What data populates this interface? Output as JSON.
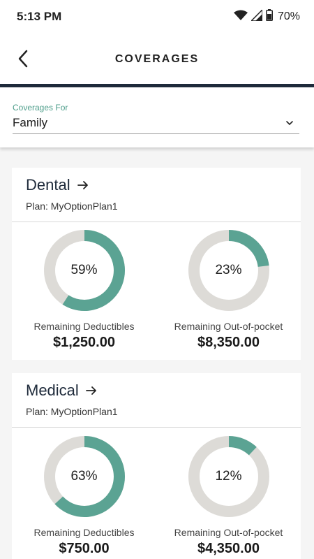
{
  "status_bar": {
    "time": "5:13 PM",
    "battery": "70%"
  },
  "header": {
    "title": "COVERAGES"
  },
  "filter": {
    "label": "Coverages For",
    "value": "Family"
  },
  "colors": {
    "accent": "#5ba393",
    "track": "#dddbd7",
    "header_rule": "#1e2a3a"
  },
  "cards": [
    {
      "title": "Dental",
      "plan": "Plan: MyOptionPlan1",
      "metrics": [
        {
          "label": "Remaining Deductibles",
          "percent": 59,
          "percent_text": "59%",
          "amount": "$1,250.00"
        },
        {
          "label": "Remaining Out-of-pocket",
          "percent": 23,
          "percent_text": "23%",
          "amount": "$8,350.00"
        }
      ]
    },
    {
      "title": "Medical",
      "plan": "Plan: MyOptionPlan1",
      "metrics": [
        {
          "label": "Remaining Deductibles",
          "percent": 63,
          "percent_text": "63%",
          "amount": "$750.00"
        },
        {
          "label": "Remaining Out-of-pocket",
          "percent": 12,
          "percent_text": "12%",
          "amount": "$4,350.00"
        }
      ]
    }
  ]
}
